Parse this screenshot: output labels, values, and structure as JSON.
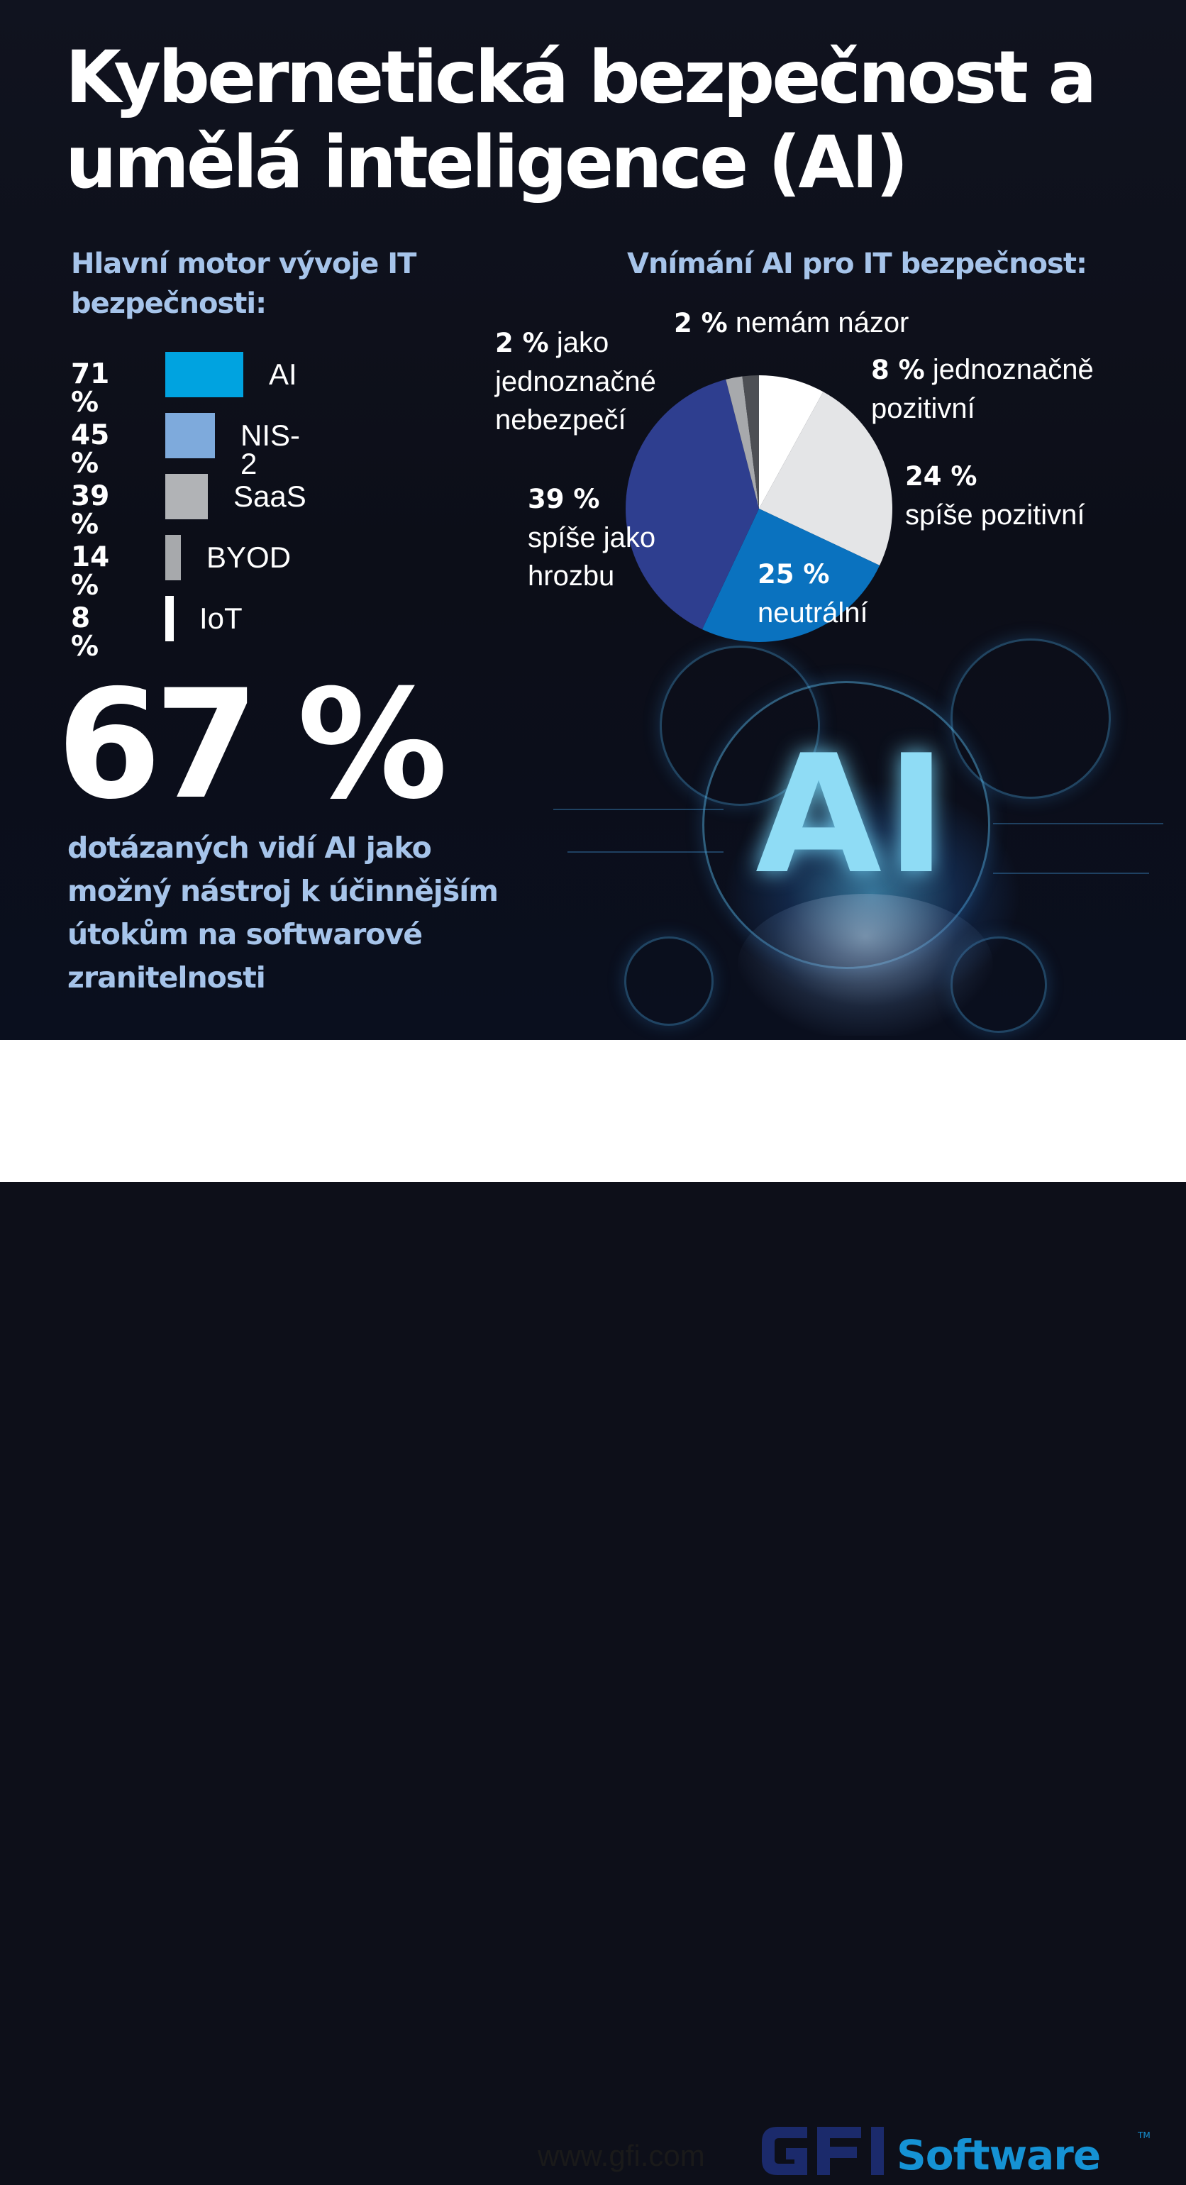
{
  "title": "Kybernetická bezpečnost a umělá inteligence (AI)",
  "left_heading": "Hlavní motor vývoje IT bezpečnosti:",
  "right_heading": "Vnímání AI pro IT bezpečnost:",
  "big_stat": "67 %",
  "stat_description": "dotázaných vidí AI jako možný nástroj k účinnějším útokům na softwarové zranitelnosti",
  "footer": {
    "url": "www.gfi.com",
    "logo_text": "GFI Software"
  },
  "colors": {
    "ai": "#00a3e0",
    "nis2": "#7eaadc",
    "saas": "#b1b3b6",
    "byod": "#a7a9ac",
    "iot": "#ffffff",
    "pie_white": "#ffffff",
    "pie_light": "#e4e5e7",
    "pie_blue": "#0a72bf",
    "pie_navy": "#2e3e8f",
    "pie_gray": "#a7a9ac",
    "pie_dark": "#4d4f54",
    "heading": "#a6c4ea",
    "logo_navy": "#1b2a6b",
    "logo_blue": "#1592d4"
  },
  "chart_data": [
    {
      "type": "bar",
      "orientation": "horizontal",
      "categories": [
        "AI",
        "NIS-2",
        "SaaS",
        "BYOD",
        "IoT"
      ],
      "values": [
        71,
        45,
        39,
        14,
        8
      ],
      "value_labels": [
        "71 %",
        "45 %",
        "39 %",
        "14 %",
        "8 %"
      ],
      "unit": "%",
      "colors": [
        "#00a3e0",
        "#7eaadc",
        "#b1b3b6",
        "#a7a9ac",
        "#ffffff"
      ]
    },
    {
      "type": "pie",
      "slices": [
        {
          "pct": "8 %",
          "label": "jednoznačně pozitivní",
          "value": 8,
          "color": "#ffffff"
        },
        {
          "pct": "24 %",
          "label": "spíše pozitivní",
          "value": 24,
          "color": "#e4e5e7"
        },
        {
          "pct": "25 %",
          "label": "neutrální",
          "value": 25,
          "color": "#0a72bf"
        },
        {
          "pct": "39 %",
          "label": "spíše jako hrozbu",
          "value": 39,
          "color": "#2e3e8f"
        },
        {
          "pct": "2 %",
          "label": "jako jednoznačné nebezpečí",
          "value": 2,
          "color": "#a7a9ac"
        },
        {
          "pct": "2 %",
          "label": "nemám názor",
          "value": 2,
          "color": "#4d4f54"
        }
      ]
    }
  ]
}
